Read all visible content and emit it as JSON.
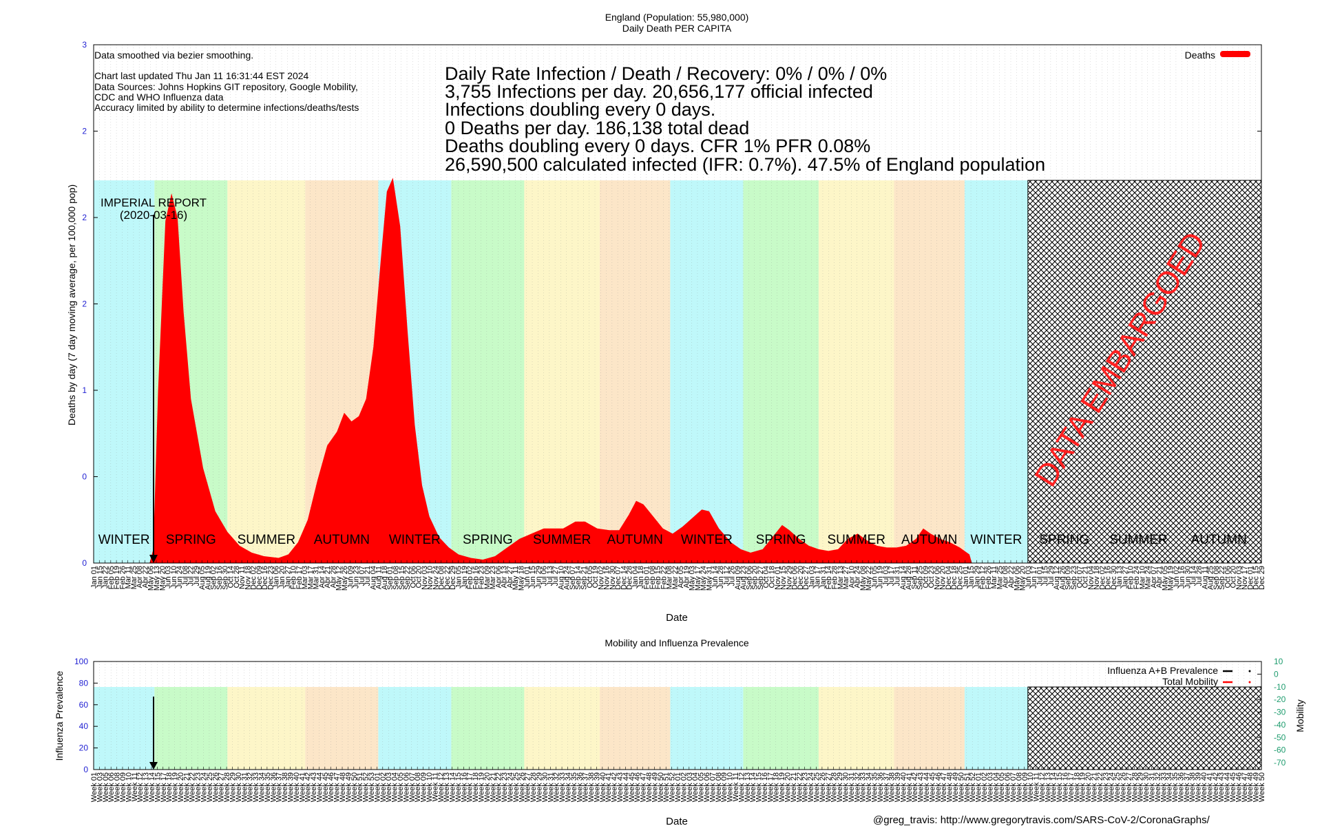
{
  "colors": {
    "deaths": "#ff0000",
    "winter": "#bff8fa",
    "spring": "#c8fbc8",
    "summer": "#fdf6c8",
    "autumn": "#fce6c8",
    "ytick": "#1e1ed2",
    "mobility_tick": "#1e9c6e",
    "embargo_text": "#ff2020"
  },
  "chart_data": [
    {
      "type": "area",
      "title": "England (Population: 55,980,000)",
      "subtitle": "Daily Death PER CAPITA",
      "xlabel": "Date",
      "ylabel": "Deaths by day (7 day moving average, per 100,000 pop)",
      "ylim": [
        0,
        3
      ],
      "yticks": [
        {
          "v": 0,
          "label": "0"
        },
        {
          "v": 0.5,
          "label": "0"
        },
        {
          "v": 1,
          "label": "1"
        },
        {
          "v": 1.5,
          "label": "2"
        },
        {
          "v": 2,
          "label": "2"
        },
        {
          "v": 2.5,
          "label": "2"
        },
        {
          "v": 3,
          "label": "3"
        }
      ],
      "xlim_months": [
        0,
        48
      ],
      "legend": {
        "label": "Deaths",
        "position": "top-right"
      },
      "series": [
        {
          "name": "Deaths",
          "points": [
            [
              0,
              0
            ],
            [
              2.3,
              0
            ],
            [
              2.45,
              0.08
            ],
            [
              2.65,
              1.0
            ],
            [
              2.95,
              1.98
            ],
            [
              3.2,
              2.14
            ],
            [
              3.45,
              2.0
            ],
            [
              3.7,
              1.45
            ],
            [
              4.0,
              0.95
            ],
            [
              4.5,
              0.55
            ],
            [
              5.0,
              0.3
            ],
            [
              5.5,
              0.18
            ],
            [
              6.0,
              0.1
            ],
            [
              6.5,
              0.06
            ],
            [
              7.0,
              0.04
            ],
            [
              7.6,
              0.03
            ],
            [
              8.0,
              0.05
            ],
            [
              8.4,
              0.12
            ],
            [
              8.8,
              0.25
            ],
            [
              9.2,
              0.48
            ],
            [
              9.6,
              0.68
            ],
            [
              10.0,
              0.76
            ],
            [
              10.3,
              0.87
            ],
            [
              10.6,
              0.82
            ],
            [
              10.9,
              0.85
            ],
            [
              11.2,
              0.95
            ],
            [
              11.5,
              1.25
            ],
            [
              11.8,
              1.75
            ],
            [
              12.05,
              2.15
            ],
            [
              12.3,
              2.23
            ],
            [
              12.6,
              1.95
            ],
            [
              12.9,
              1.35
            ],
            [
              13.2,
              0.8
            ],
            [
              13.5,
              0.45
            ],
            [
              13.8,
              0.27
            ],
            [
              14.2,
              0.15
            ],
            [
              14.6,
              0.09
            ],
            [
              15.0,
              0.05
            ],
            [
              15.5,
              0.03
            ],
            [
              16.0,
              0.02
            ],
            [
              16.5,
              0.04
            ],
            [
              17.0,
              0.09
            ],
            [
              17.5,
              0.14
            ],
            [
              18.0,
              0.17
            ],
            [
              18.5,
              0.2
            ],
            [
              18.9,
              0.2
            ],
            [
              19.3,
              0.2
            ],
            [
              19.8,
              0.24
            ],
            [
              20.2,
              0.24
            ],
            [
              20.7,
              0.2
            ],
            [
              21.2,
              0.19
            ],
            [
              21.6,
              0.19
            ],
            [
              22.0,
              0.28
            ],
            [
              22.3,
              0.36
            ],
            [
              22.6,
              0.34
            ],
            [
              23.0,
              0.27
            ],
            [
              23.4,
              0.2
            ],
            [
              23.8,
              0.17
            ],
            [
              24.2,
              0.21
            ],
            [
              24.6,
              0.26
            ],
            [
              25.0,
              0.31
            ],
            [
              25.3,
              0.3
            ],
            [
              25.7,
              0.2
            ],
            [
              26.2,
              0.12
            ],
            [
              26.6,
              0.08
            ],
            [
              27.0,
              0.06
            ],
            [
              27.5,
              0.08
            ],
            [
              27.9,
              0.15
            ],
            [
              28.3,
              0.22
            ],
            [
              28.6,
              0.19
            ],
            [
              29.0,
              0.14
            ],
            [
              29.4,
              0.1
            ],
            [
              29.8,
              0.08
            ],
            [
              30.2,
              0.07
            ],
            [
              30.6,
              0.08
            ],
            [
              31.0,
              0.14
            ],
            [
              31.4,
              0.17
            ],
            [
              31.8,
              0.13
            ],
            [
              32.2,
              0.1
            ],
            [
              32.6,
              0.09
            ],
            [
              33.0,
              0.09
            ],
            [
              33.4,
              0.1
            ],
            [
              33.8,
              0.14
            ],
            [
              34.1,
              0.2
            ],
            [
              34.4,
              0.17
            ],
            [
              34.8,
              0.14
            ],
            [
              35.2,
              0.12
            ],
            [
              35.6,
              0.09
            ],
            [
              36.0,
              0.05
            ],
            [
              36.1,
              0
            ]
          ]
        }
      ],
      "annotations": {
        "imperial_report": "IMPERIAL REPORT",
        "imperial_date": "(2020-03-16)",
        "embargo": "DATA EMBARGOED",
        "smoothing": "Data smoothed via bezier smoothing.",
        "updated": "Chart last updated Thu Jan 11 16:31:44 EST 2024",
        "sources_1": "Data Sources: Johns Hopkins GIT repository, Google Mobility,",
        "sources_2": "CDC and WHO Influenza data",
        "accuracy": "Accuracy limited by ability to determine infections/deaths/tests"
      },
      "stats": [
        "Daily Rate Infection / Death / Recovery: 0% / 0% / 0%",
        "3,755 Infections per day.  20,656,177 official infected",
        "Infections doubling every 0 days.",
        "0 Deaths per day.  186,138 total dead",
        "Deaths doubling every 0 days.  CFR 1%  PFR 0.08%",
        "26,590,500 calculated infected (IFR: 0.7%).  47.5% of England population"
      ],
      "seasons": [
        {
          "name": "WINTER",
          "start": 0,
          "end": 2.5,
          "kind": "winter"
        },
        {
          "name": "SPRING",
          "start": 2.5,
          "end": 5.5,
          "kind": "spring"
        },
        {
          "name": "SUMMER",
          "start": 5.5,
          "end": 8.7,
          "kind": "summer"
        },
        {
          "name": "AUTUMN",
          "start": 8.7,
          "end": 11.7,
          "kind": "autumn"
        },
        {
          "name": "WINTER",
          "start": 11.7,
          "end": 14.7,
          "kind": "winter"
        },
        {
          "name": "SPRING",
          "start": 14.7,
          "end": 17.7,
          "kind": "spring"
        },
        {
          "name": "SUMMER",
          "start": 17.7,
          "end": 20.8,
          "kind": "summer"
        },
        {
          "name": "AUTUMN",
          "start": 20.8,
          "end": 23.7,
          "kind": "autumn"
        },
        {
          "name": "WINTER",
          "start": 23.7,
          "end": 26.7,
          "kind": "winter"
        },
        {
          "name": "SPRING",
          "start": 26.7,
          "end": 29.8,
          "kind": "spring"
        },
        {
          "name": "SUMMER",
          "start": 29.8,
          "end": 32.9,
          "kind": "summer"
        },
        {
          "name": "AUTUMN",
          "start": 32.9,
          "end": 35.8,
          "kind": "autumn"
        },
        {
          "name": "WINTER",
          "start": 35.8,
          "end": 38.4,
          "kind": "winter"
        },
        {
          "name": "SPRING",
          "start": 38.4,
          "end": 41.4,
          "kind": "embargo"
        },
        {
          "name": "SUMMER",
          "start": 41.4,
          "end": 44.5,
          "kind": "embargo"
        },
        {
          "name": "AUTUMN",
          "start": 44.5,
          "end": 48,
          "kind": "embargo"
        }
      ],
      "embargo_start": 38.4,
      "imperial_month": 2.5,
      "x_tick_labels": [
        "Jan 01",
        "Jan 15",
        "Jan 22",
        "Feb 05",
        "Feb 19",
        "Feb 26",
        "Mar 11",
        "Mar 25",
        "Apr 08",
        "Apr 22",
        "May 06",
        "May 13",
        "May 20",
        "Jun 03",
        "Jun 10",
        "Jun 24",
        "Jul 08",
        "Jul 22",
        "Jul 29",
        "Aug 05",
        "Aug 19",
        "Sep 02",
        "Sep 16",
        "Sep 30",
        "Oct 14",
        "Oct 28",
        "Nov 11",
        "Nov 18",
        "Dec 02",
        "Dec 09",
        "Dec 16",
        "Dec 23",
        "Jan 06",
        "Jan 20",
        "Jan 27",
        "Feb 10",
        "Feb 17",
        "Mar 03",
        "Mar 17",
        "Mar 31",
        "Apr 14",
        "Apr 21",
        "Apr 28",
        "May 12",
        "May 26",
        "Jun 09",
        "Jun 23",
        "Jul 07",
        "Jul 21",
        "Aug 04",
        "Aug 11",
        "Aug 18",
        "Sep 01",
        "Sep 08",
        "Sep 15",
        "Sep 22",
        "Oct 06",
        "Oct 20",
        "Nov 03",
        "Nov 10",
        "Nov 24",
        "Dec 08",
        "Dec 22",
        "Dec 29",
        "Jan 05",
        "Jan 19",
        "Feb 02",
        "Feb 16",
        "Feb 23",
        "Mar 09",
        "Mar 23",
        "Apr 06",
        "Apr 13",
        "Apr 27",
        "May 11",
        "May 18",
        "Jun 01",
        "Jun 15",
        "Jun 29",
        "Jul 06",
        "Jul 13",
        "Jul 27",
        "Aug 10",
        "Aug 24",
        "Sep 07",
        "Sep 14",
        "Sep 21",
        "Oct 05",
        "Oct 19",
        "Nov 02",
        "Nov 16",
        "Nov 30",
        "Dec 07",
        "Dec 14",
        "Dec 28",
        "Jan 04",
        "Jan 18",
        "Feb 01",
        "Feb 08",
        "Feb 15",
        "Feb 22",
        "Mar 08",
        "Mar 22",
        "Apr 05",
        "Apr 19",
        "May 03",
        "May 17",
        "May 24",
        "May 31",
        "Jun 14",
        "Jun 28",
        "Jul 12",
        "Jul 26",
        "Aug 09",
        "Aug 23",
        "Sep 06",
        "Sep 20",
        "Sep 27",
        "Oct 04",
        "Oct 18",
        "Nov 01",
        "Nov 15",
        "Nov 29",
        "Dec 06",
        "Dec 20",
        "Dec 27",
        "Jan 03",
        "Jan 17",
        "Jan 31",
        "Feb 14",
        "Feb 28",
        "Mar 13",
        "Mar 27",
        "Apr 10",
        "Apr 24",
        "May 08",
        "May 22",
        "Jun 05",
        "Jun 19",
        "Jul 03",
        "Jul 17",
        "Jul 31",
        "Aug 14",
        "Aug 28",
        "Sep 11",
        "Sep 25",
        "Oct 09",
        "Oct 23",
        "Nov 06",
        "Nov 20",
        "Dec 04",
        "Dec 18",
        "Dec 25",
        "Jan 01",
        "Jan 15",
        "Jan 29",
        "Feb 12",
        "Feb 26",
        "Mar 11",
        "Mar 25",
        "Apr 08",
        "Apr 22",
        "May 06",
        "May 20",
        "Jun 03",
        "Jun 17",
        "Jul 01",
        "Jul 15",
        "Jul 29",
        "Aug 12",
        "Aug 26",
        "Sep 09",
        "Sep 23",
        "Oct 07",
        "Oct 21",
        "Nov 04",
        "Nov 18",
        "Dec 02",
        "Dec 16",
        "Dec 30",
        "Jan 13",
        "Jan 27",
        "Feb 10",
        "Feb 24",
        "Mar 10",
        "Mar 24",
        "Apr 07",
        "Apr 21",
        "May 05",
        "May 19",
        "Jun 02",
        "Jun 16",
        "Jun 30",
        "Jul 14",
        "Jul 28",
        "Aug 11",
        "Aug 25",
        "Sep 08",
        "Sep 22",
        "Oct 06",
        "Oct 20",
        "Nov 03",
        "Nov 17",
        "Dec 01",
        "Dec 15",
        "Dec 29"
      ]
    },
    {
      "type": "line",
      "title": "Mobility and Influenza Prevalence",
      "xlabel": "Date",
      "ylabel": "Influenza Prevalence",
      "y2label": "Mobility",
      "ylim": [
        0,
        100
      ],
      "yticks": [
        "0",
        "20",
        "40",
        "60",
        "80",
        "100"
      ],
      "y2ticks": [
        "10",
        "0",
        "-10",
        "-20",
        "-30",
        "-40",
        "-50",
        "-60",
        "-70"
      ],
      "legend": [
        {
          "label": "Influenza A+B Prevalence",
          "color": "#000000"
        },
        {
          "label": "Total Mobility",
          "color": "#ff0000"
        }
      ],
      "week_labels": [
        "Week 01",
        "Week 03",
        "Week 05",
        "Week 06",
        "Week 08",
        "Week 09",
        "Week 10",
        "Week 11",
        "Week 12",
        "Week 13",
        "Week 14",
        "Week 15",
        "Week 17",
        "Week 18",
        "Week 19",
        "Week 20",
        "Week 21",
        "Week 22",
        "Week 23",
        "Week 24",
        "Week 25",
        "Week 26",
        "Week 27",
        "Week 28",
        "Week 29",
        "Week 30",
        "Week 31",
        "Week 32",
        "Week 33",
        "Week 34",
        "Week 35",
        "Week 36",
        "Week 37",
        "Week 38",
        "Week 39",
        "Week 40",
        "Week 41",
        "Week 42",
        "Week 43",
        "Week 44",
        "Week 45",
        "Week 46",
        "Week 47",
        "Week 48",
        "Week 49",
        "Week 50",
        "Week 51",
        "Week 52",
        "Week 53",
        "Week 01",
        "Week 02",
        "Week 03",
        "Week 04",
        "Week 05",
        "Week 06",
        "Week 07",
        "Week 08",
        "Week 09",
        "Week 10",
        "Week 11",
        "Week 12",
        "Week 13",
        "Week 14",
        "Week 15",
        "Week 16",
        "Week 17",
        "Week 18",
        "Week 19",
        "Week 20",
        "Week 21",
        "Week 22",
        "Week 23",
        "Week 24",
        "Week 25",
        "Week 26",
        "Week 27",
        "Week 28",
        "Week 29",
        "Week 30",
        "Week 31",
        "Week 32",
        "Week 33",
        "Week 34",
        "Week 35",
        "Week 36",
        "Week 37",
        "Week 38",
        "Week 39",
        "Week 40",
        "Week 41",
        "Week 42",
        "Week 43",
        "Week 44",
        "Week 45",
        "Week 46",
        "Week 47",
        "Week 48",
        "Week 49",
        "Week 50",
        "Week 51",
        "Week 52",
        "Week 01",
        "Week 02",
        "Week 03",
        "Week 04",
        "Week 05",
        "Week 06",
        "Week 07",
        "Week 08",
        "Week 09",
        "Week 10",
        "Week 11",
        "Week 12",
        "Week 13",
        "Week 14",
        "Week 15",
        "Week 16",
        "Week 17",
        "Week 18",
        "Week 19",
        "Week 20",
        "Week 21",
        "Week 22",
        "Week 23",
        "Week 24",
        "Week 25",
        "Week 26",
        "Week 27",
        "Week 28",
        "Week 29",
        "Week 30",
        "Week 31",
        "Week 32",
        "Week 33",
        "Week 34",
        "Week 35",
        "Week 36",
        "Week 37",
        "Week 38",
        "Week 39",
        "Week 40",
        "Week 41",
        "Week 42",
        "Week 43",
        "Week 44",
        "Week 45",
        "Week 46",
        "Week 47",
        "Week 48",
        "Week 49",
        "Week 50",
        "Week 51",
        "Week 52",
        "Week 01",
        "Week 02",
        "Week 03",
        "Week 04",
        "Week 05",
        "Week 06",
        "Week 07",
        "Week 08",
        "Week 09",
        "Week 10",
        "Week 11",
        "Week 12",
        "Week 13",
        "Week 14",
        "Week 15",
        "Week 16",
        "Week 17",
        "Week 18",
        "Week 19",
        "Week 20",
        "Week 21",
        "Week 22",
        "Week 23",
        "Week 24",
        "Week 25",
        "Week 26",
        "Week 27",
        "Week 28",
        "Week 29",
        "Week 30",
        "Week 31",
        "Week 32",
        "Week 33",
        "Week 34",
        "Week 35",
        "Week 36",
        "Week 37",
        "Week 38",
        "Week 39",
        "Week 40",
        "Week 41",
        "Week 42",
        "Week 43",
        "Week 44",
        "Week 45",
        "Week 46",
        "Week 47",
        "Week 48",
        "Week 49",
        "Week 50"
      ]
    }
  ],
  "footer": "@greg_travis: http://www.gregorytravis.com/SARS-CoV-2/CoronaGraphs/"
}
